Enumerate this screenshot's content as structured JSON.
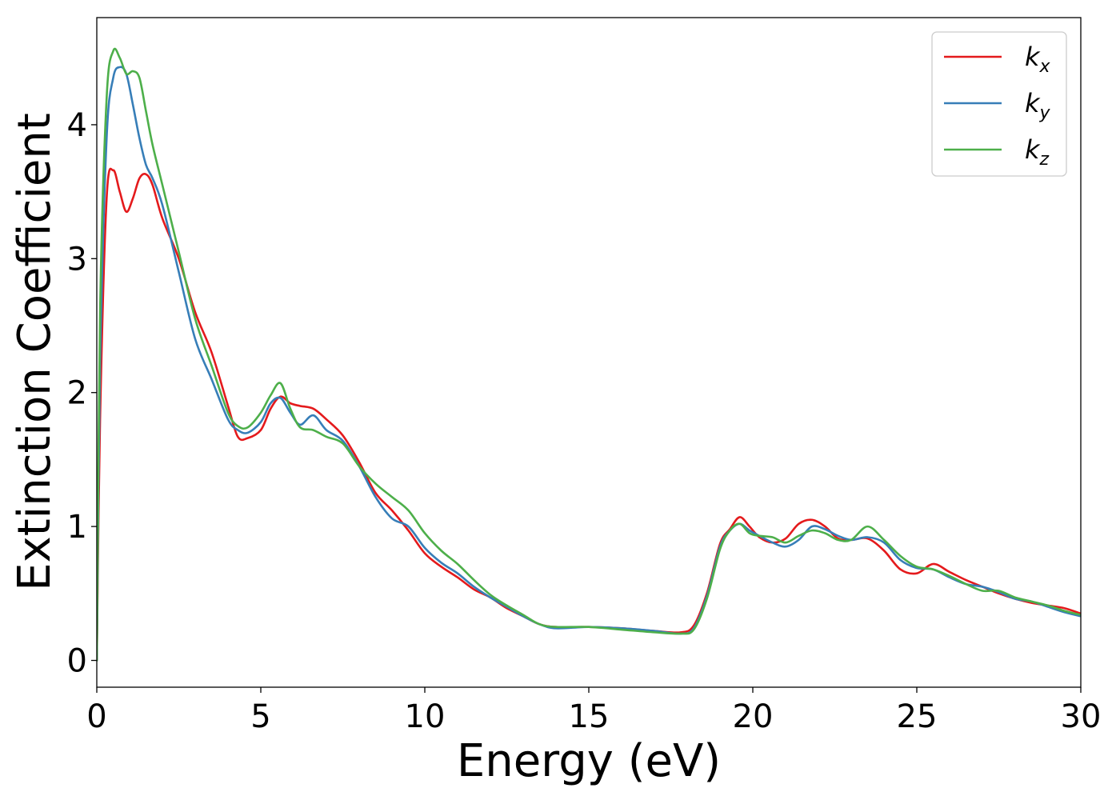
{
  "chart_data": {
    "type": "line",
    "title": "",
    "xlabel": "Energy (eV)",
    "ylabel": "Extinction Coefficient",
    "xlim": [
      0,
      30
    ],
    "ylim": [
      -0.2,
      4.8
    ],
    "xticks": [
      0,
      5,
      10,
      15,
      20,
      25,
      30
    ],
    "xtick_labels": [
      "0",
      "5",
      "10",
      "15",
      "20",
      "25",
      "30"
    ],
    "yticks": [
      0,
      1,
      2,
      3,
      4
    ],
    "ytick_labels": [
      "0",
      "1",
      "2",
      "3",
      "4"
    ],
    "grid": false,
    "legend_position": "top-right",
    "series": [
      {
        "name": "k_x",
        "label_main": "k",
        "label_sub": "x",
        "color": "#e41a1c",
        "x": [
          0,
          0.1,
          0.3,
          0.5,
          0.7,
          0.9,
          1.1,
          1.3,
          1.5,
          1.7,
          2.0,
          2.5,
          3.0,
          3.5,
          4.0,
          4.3,
          4.6,
          5.0,
          5.3,
          5.6,
          5.9,
          6.2,
          6.6,
          7.0,
          7.5,
          8.0,
          8.5,
          9.0,
          9.5,
          10.0,
          10.5,
          11.0,
          11.5,
          12.0,
          12.5,
          13.0,
          13.5,
          14.0,
          15.0,
          16.0,
          17.0,
          17.8,
          18.2,
          18.6,
          19.0,
          19.3,
          19.6,
          19.9,
          20.2,
          20.6,
          21.0,
          21.4,
          21.8,
          22.2,
          22.6,
          23.0,
          23.5,
          24.0,
          24.5,
          25.0,
          25.5,
          26.0,
          26.5,
          27.0,
          27.5,
          28.0,
          28.5,
          29.0,
          29.5,
          30.0
        ],
        "y": [
          0,
          1.8,
          3.45,
          3.66,
          3.5,
          3.35,
          3.45,
          3.6,
          3.63,
          3.55,
          3.3,
          3.0,
          2.6,
          2.3,
          1.9,
          1.67,
          1.66,
          1.72,
          1.88,
          1.97,
          1.92,
          1.9,
          1.88,
          1.8,
          1.68,
          1.48,
          1.25,
          1.12,
          0.97,
          0.8,
          0.7,
          0.62,
          0.53,
          0.47,
          0.39,
          0.33,
          0.27,
          0.25,
          0.25,
          0.24,
          0.22,
          0.21,
          0.26,
          0.5,
          0.87,
          0.98,
          1.07,
          1.0,
          0.92,
          0.88,
          0.91,
          1.02,
          1.05,
          1.0,
          0.91,
          0.9,
          0.91,
          0.82,
          0.68,
          0.65,
          0.72,
          0.66,
          0.6,
          0.55,
          0.5,
          0.46,
          0.43,
          0.41,
          0.39,
          0.35
        ]
      },
      {
        "name": "k_y",
        "label_main": "k",
        "label_sub": "y",
        "color": "#377eb8",
        "x": [
          0,
          0.1,
          0.3,
          0.5,
          0.7,
          0.9,
          1.1,
          1.3,
          1.5,
          1.7,
          2.0,
          2.5,
          3.0,
          3.5,
          4.0,
          4.3,
          4.6,
          5.0,
          5.3,
          5.6,
          5.9,
          6.2,
          6.6,
          7.0,
          7.5,
          8.0,
          8.5,
          9.0,
          9.5,
          10.0,
          10.5,
          11.0,
          11.5,
          12.0,
          12.5,
          13.0,
          13.5,
          14.0,
          15.0,
          16.0,
          17.0,
          17.8,
          18.2,
          18.6,
          19.0,
          19.3,
          19.6,
          19.9,
          20.2,
          20.6,
          21.0,
          21.4,
          21.8,
          22.2,
          22.6,
          23.0,
          23.5,
          24.0,
          24.5,
          25.0,
          25.5,
          26.0,
          26.5,
          27.0,
          27.5,
          28.0,
          28.5,
          29.0,
          29.5,
          30.0
        ],
        "y": [
          0,
          2.2,
          3.9,
          4.35,
          4.43,
          4.38,
          4.15,
          3.9,
          3.7,
          3.6,
          3.4,
          2.9,
          2.4,
          2.1,
          1.8,
          1.72,
          1.7,
          1.78,
          1.92,
          1.96,
          1.85,
          1.76,
          1.83,
          1.72,
          1.64,
          1.45,
          1.22,
          1.06,
          1.0,
          0.84,
          0.73,
          0.65,
          0.55,
          0.47,
          0.4,
          0.33,
          0.27,
          0.24,
          0.25,
          0.24,
          0.22,
          0.2,
          0.24,
          0.48,
          0.85,
          0.97,
          1.02,
          0.97,
          0.93,
          0.88,
          0.85,
          0.9,
          1.0,
          0.98,
          0.93,
          0.9,
          0.92,
          0.88,
          0.75,
          0.69,
          0.68,
          0.62,
          0.57,
          0.55,
          0.51,
          0.46,
          0.44,
          0.4,
          0.36,
          0.33
        ]
      },
      {
        "name": "k_z",
        "label_main": "k",
        "label_sub": "z",
        "color": "#4daf4a",
        "x": [
          0,
          0.1,
          0.3,
          0.5,
          0.7,
          0.9,
          1.1,
          1.3,
          1.5,
          1.7,
          2.0,
          2.5,
          3.0,
          3.5,
          4.0,
          4.3,
          4.6,
          5.0,
          5.3,
          5.6,
          5.9,
          6.2,
          6.6,
          7.0,
          7.5,
          8.0,
          8.5,
          9.0,
          9.5,
          10.0,
          10.5,
          11.0,
          11.5,
          12.0,
          12.5,
          13.0,
          13.5,
          14.0,
          15.0,
          16.0,
          17.0,
          17.8,
          18.2,
          18.6,
          19.0,
          19.3,
          19.6,
          19.9,
          20.2,
          20.6,
          21.0,
          21.4,
          21.8,
          22.2,
          22.6,
          23.0,
          23.5,
          24.0,
          24.5,
          25.0,
          25.5,
          26.0,
          26.5,
          27.0,
          27.5,
          28.0,
          28.5,
          29.0,
          29.5,
          30.0
        ],
        "y": [
          0,
          2.6,
          4.2,
          4.55,
          4.5,
          4.38,
          4.4,
          4.35,
          4.1,
          3.85,
          3.55,
          3.05,
          2.55,
          2.2,
          1.85,
          1.75,
          1.74,
          1.85,
          1.98,
          2.07,
          1.88,
          1.74,
          1.72,
          1.67,
          1.62,
          1.45,
          1.32,
          1.22,
          1.12,
          0.95,
          0.82,
          0.72,
          0.6,
          0.49,
          0.41,
          0.34,
          0.27,
          0.25,
          0.25,
          0.23,
          0.21,
          0.2,
          0.23,
          0.46,
          0.83,
          0.97,
          1.02,
          0.95,
          0.93,
          0.92,
          0.88,
          0.93,
          0.97,
          0.95,
          0.9,
          0.9,
          1.0,
          0.9,
          0.78,
          0.7,
          0.68,
          0.63,
          0.57,
          0.52,
          0.52,
          0.47,
          0.44,
          0.41,
          0.37,
          0.34
        ]
      }
    ]
  }
}
